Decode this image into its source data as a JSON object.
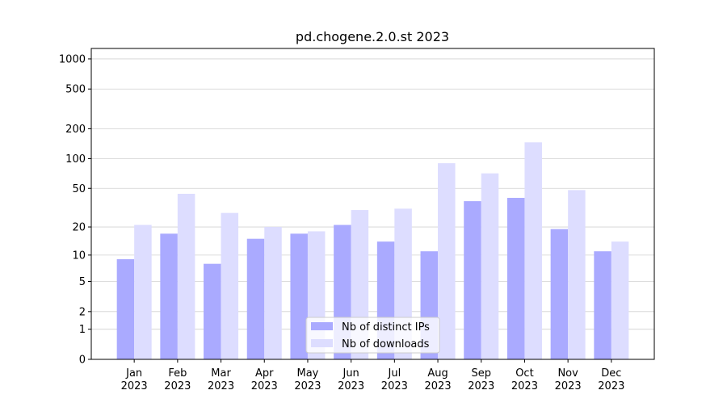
{
  "chart_data": {
    "type": "bar",
    "title": "pd.chogene.2.0.st 2023",
    "categories": [
      "Jan\n2023",
      "Feb\n2023",
      "Mar\n2023",
      "Apr\n2023",
      "May\n2023",
      "Jun\n2023",
      "Jul\n2023",
      "Aug\n2023",
      "Sep\n2023",
      "Oct\n2023",
      "Nov\n2023",
      "Dec\n2023"
    ],
    "series": [
      {
        "name": "Nb of distinct IPs",
        "color": "#aaaaff",
        "values": [
          9,
          17,
          8,
          15,
          17,
          21,
          14,
          11,
          37,
          40,
          19,
          11
        ]
      },
      {
        "name": "Nb of downloads",
        "color": "#ddddff",
        "values": [
          21,
          44,
          28,
          20,
          18,
          30,
          31,
          90,
          71,
          146,
          48,
          14
        ]
      }
    ],
    "y_scale": "log1p",
    "ylim": [
      0,
      1272
    ],
    "yticks": [
      0,
      1,
      2,
      5,
      10,
      20,
      50,
      100,
      200,
      500,
      1000
    ],
    "grid": true,
    "legend": "lower center"
  }
}
